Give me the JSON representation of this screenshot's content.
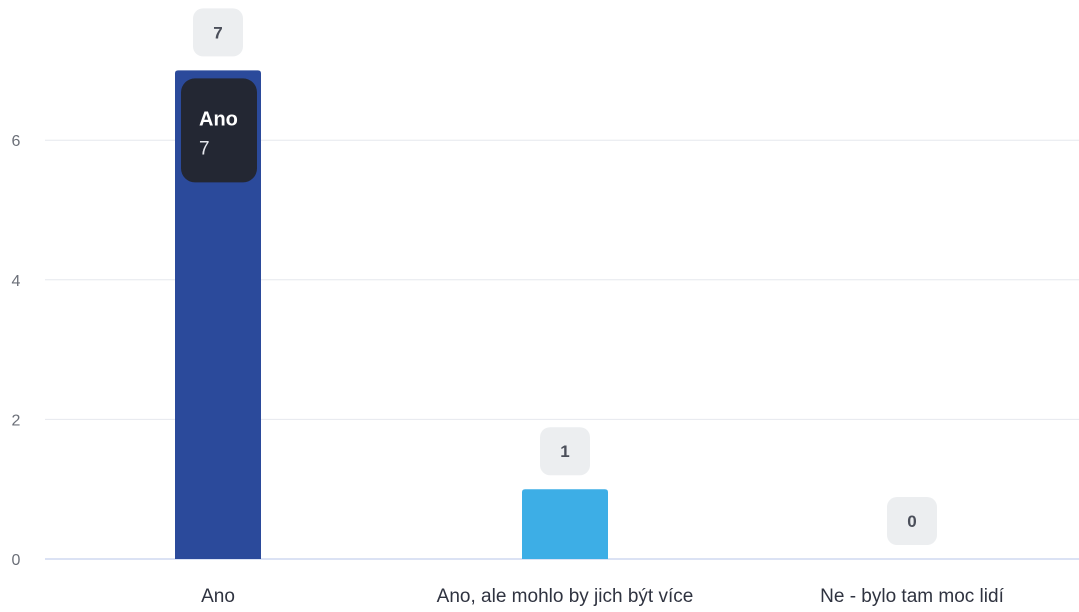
{
  "chart_data": {
    "type": "bar",
    "categories": [
      "Ano",
      "Ano, ale mohlo by jich být více",
      "Ne - bylo tam moc lidí"
    ],
    "values": [
      7,
      1,
      0
    ],
    "ylim": [
      0,
      7
    ],
    "yticks": [
      "0",
      "2",
      "4",
      "6"
    ],
    "title": "",
    "xlabel": "",
    "ylabel": "",
    "grid": true,
    "legend": "none",
    "colors": [
      "#2b4a9b",
      "#3daee6",
      "#cfd8f0"
    ],
    "grid_color": "#e6e8ee",
    "axis_color": "#cfd8f0",
    "data_labels": [
      "7",
      "1",
      "0"
    ],
    "tooltip": {
      "category": "Ano",
      "value": "7"
    }
  }
}
